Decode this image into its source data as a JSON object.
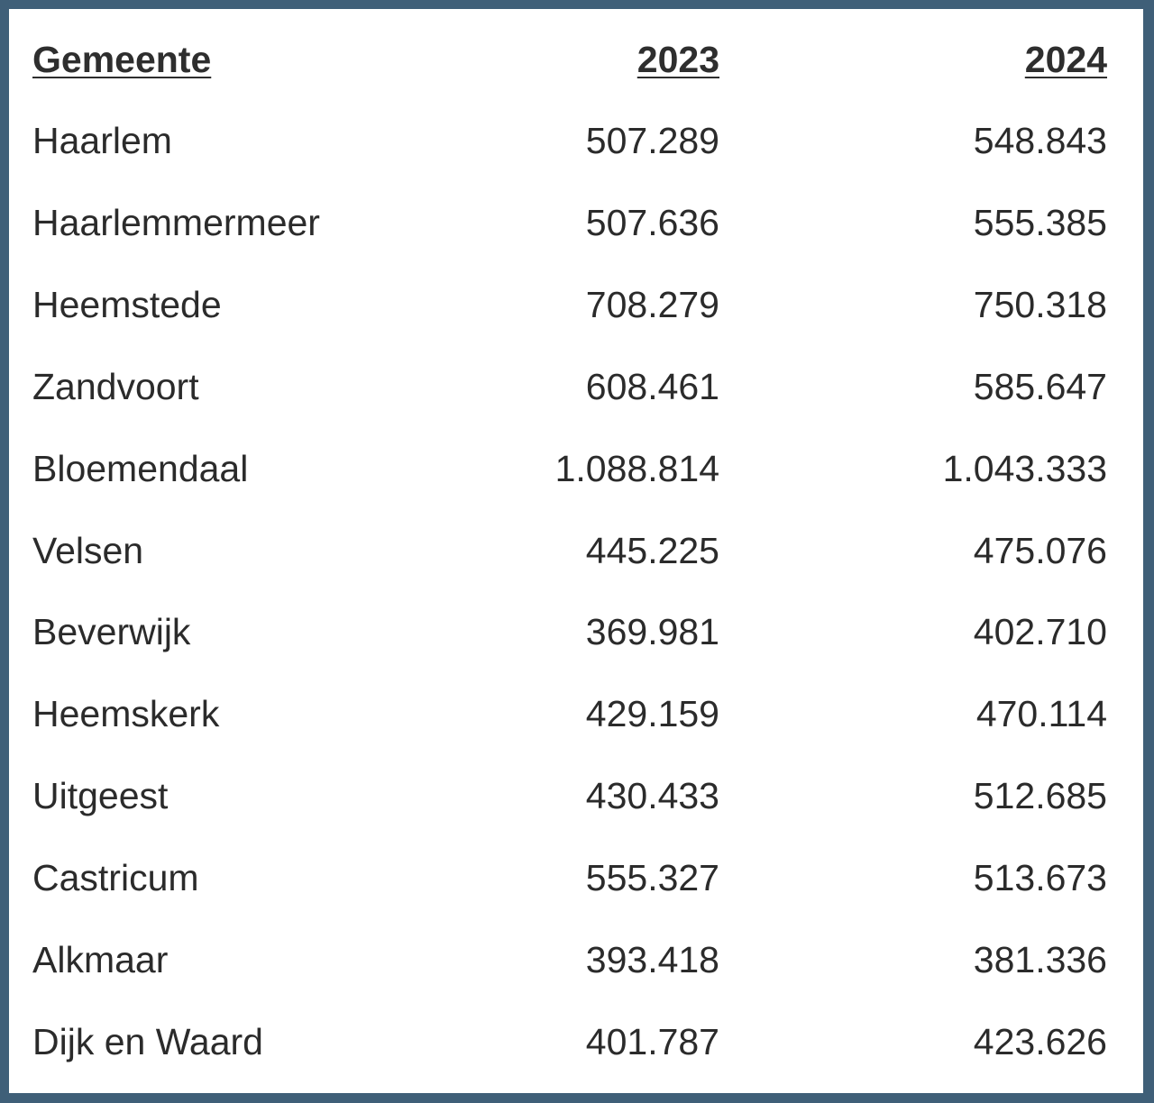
{
  "table": {
    "headers": [
      "Gemeente",
      "2023",
      "2024"
    ],
    "rows": [
      {
        "gemeente": "Haarlem",
        "y2023": "507.289",
        "y2024": "548.843"
      },
      {
        "gemeente": "Haarlemmermeer",
        "y2023": "507.636",
        "y2024": "555.385"
      },
      {
        "gemeente": "Heemstede",
        "y2023": "708.279",
        "y2024": "750.318"
      },
      {
        "gemeente": "Zandvoort",
        "y2023": "608.461",
        "y2024": "585.647"
      },
      {
        "gemeente": "Bloemendaal",
        "y2023": "1.088.814",
        "y2024": "1.043.333"
      },
      {
        "gemeente": "Velsen",
        "y2023": "445.225",
        "y2024": "475.076"
      },
      {
        "gemeente": "Beverwijk",
        "y2023": "369.981",
        "y2024": "402.710"
      },
      {
        "gemeente": "Heemskerk",
        "y2023": "429.159",
        "y2024": "470.114"
      },
      {
        "gemeente": "Uitgeest",
        "y2023": "430.433",
        "y2024": "512.685"
      },
      {
        "gemeente": "Castricum",
        "y2023": "555.327",
        "y2024": "513.673"
      },
      {
        "gemeente": "Alkmaar",
        "y2023": "393.418",
        "y2024": "381.336"
      },
      {
        "gemeente": "Dijk en Waard",
        "y2023": "401.787",
        "y2024": "423.626"
      }
    ]
  }
}
